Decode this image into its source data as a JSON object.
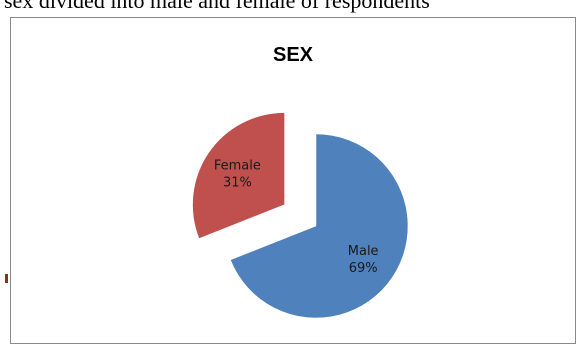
{
  "page_text": "sex divided into male and female of respondents",
  "chart_data": {
    "type": "pie",
    "title": "SEX",
    "slices": [
      {
        "label": "Male",
        "value": 69,
        "percent_label": "69%",
        "color": "#4f81bd",
        "exploded": false
      },
      {
        "label": "Female",
        "value": 31,
        "percent_label": "31%",
        "color": "#c0504d",
        "exploded": true
      }
    ],
    "start_angle_deg": 0,
    "direction": "clockwise",
    "legend": "none"
  }
}
